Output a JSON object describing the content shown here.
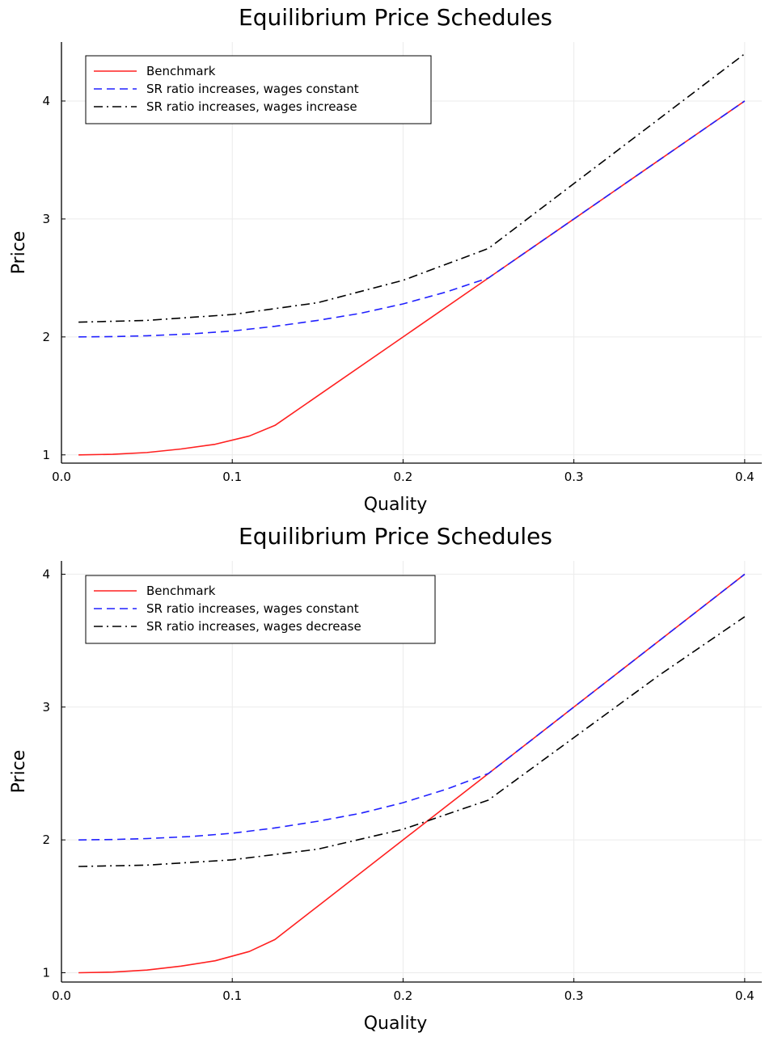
{
  "chart_data": [
    {
      "type": "line",
      "title": "Equilibrium Price Schedules",
      "xlabel": "Quality",
      "ylabel": "Price",
      "xlim": [
        0.0,
        0.41
      ],
      "ylim": [
        0.93,
        4.5
      ],
      "xticks": [
        0.0,
        0.1,
        0.2,
        0.3,
        0.4
      ],
      "xtick_labels": [
        "0.0",
        "0.1",
        "0.2",
        "0.3",
        "0.4"
      ],
      "yticks": [
        1,
        2,
        3,
        4
      ],
      "ytick_labels": [
        "1",
        "2",
        "3",
        "4"
      ],
      "grid": true,
      "legend_position": "top-left",
      "series": [
        {
          "name": "Benchmark",
          "color": "#ff2020",
          "style": "solid",
          "x": [
            0.01,
            0.03,
            0.05,
            0.07,
            0.09,
            0.11,
            0.125,
            0.15,
            0.2,
            0.25,
            0.3,
            0.35,
            0.4
          ],
          "y": [
            1.0,
            1.005,
            1.02,
            1.05,
            1.09,
            1.16,
            1.25,
            1.5,
            2.0,
            2.5,
            3.0,
            3.5,
            4.0
          ]
        },
        {
          "name": "SR ratio increases, wages constant",
          "color": "#2020ff",
          "style": "dashed",
          "x": [
            0.01,
            0.03,
            0.05,
            0.075,
            0.1,
            0.125,
            0.15,
            0.175,
            0.2,
            0.225,
            0.25,
            0.3,
            0.35,
            0.4
          ],
          "y": [
            2.0,
            2.003,
            2.01,
            2.025,
            2.05,
            2.09,
            2.14,
            2.2,
            2.28,
            2.38,
            2.5,
            3.0,
            3.5,
            4.0
          ]
        },
        {
          "name": "SR ratio increases, wages increase",
          "color": "#000000",
          "style": "dashdot",
          "x": [
            0.01,
            0.05,
            0.1,
            0.15,
            0.2,
            0.25,
            0.3,
            0.35,
            0.4
          ],
          "y": [
            2.125,
            2.14,
            2.19,
            2.29,
            2.48,
            2.75,
            3.3,
            3.85,
            4.4
          ]
        }
      ]
    },
    {
      "type": "line",
      "title": "Equilibrium Price Schedules",
      "xlabel": "Quality",
      "ylabel": "Price",
      "xlim": [
        0.0,
        0.41
      ],
      "ylim": [
        0.93,
        4.1
      ],
      "xticks": [
        0.0,
        0.1,
        0.2,
        0.3,
        0.4
      ],
      "xtick_labels": [
        "0.0",
        "0.1",
        "0.2",
        "0.3",
        "0.4"
      ],
      "yticks": [
        1,
        2,
        3,
        4
      ],
      "ytick_labels": [
        "1",
        "2",
        "3",
        "4"
      ],
      "grid": true,
      "legend_position": "top-left",
      "series": [
        {
          "name": "Benchmark",
          "color": "#ff2020",
          "style": "solid",
          "x": [
            0.01,
            0.03,
            0.05,
            0.07,
            0.09,
            0.11,
            0.125,
            0.15,
            0.2,
            0.25,
            0.3,
            0.35,
            0.4
          ],
          "y": [
            1.0,
            1.005,
            1.02,
            1.05,
            1.09,
            1.16,
            1.25,
            1.5,
            2.0,
            2.5,
            3.0,
            3.5,
            4.0
          ]
        },
        {
          "name": "SR ratio increases, wages constant",
          "color": "#2020ff",
          "style": "dashed",
          "x": [
            0.01,
            0.03,
            0.05,
            0.075,
            0.1,
            0.125,
            0.15,
            0.175,
            0.2,
            0.225,
            0.25,
            0.3,
            0.35,
            0.4
          ],
          "y": [
            2.0,
            2.003,
            2.01,
            2.025,
            2.05,
            2.09,
            2.14,
            2.2,
            2.28,
            2.38,
            2.5,
            3.0,
            3.5,
            4.0
          ]
        },
        {
          "name": "SR ratio increases, wages decrease",
          "color": "#000000",
          "style": "dashdot",
          "x": [
            0.01,
            0.05,
            0.1,
            0.15,
            0.2,
            0.25,
            0.3,
            0.35,
            0.4
          ],
          "y": [
            1.8,
            1.81,
            1.85,
            1.93,
            2.08,
            2.3,
            2.77,
            3.24,
            3.68
          ]
        }
      ]
    }
  ]
}
